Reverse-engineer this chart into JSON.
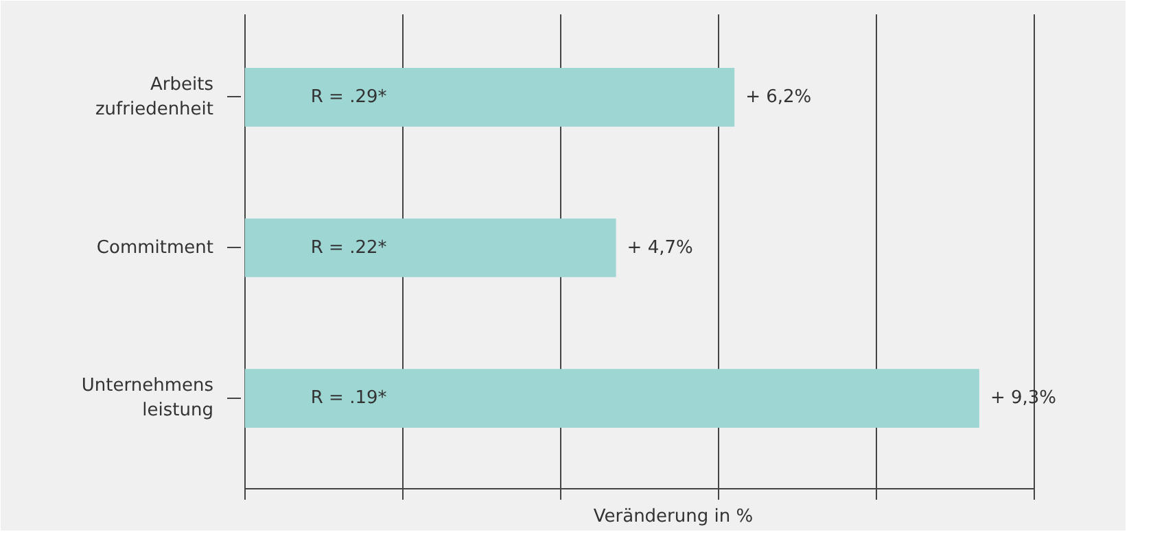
{
  "chart_data": {
    "type": "bar",
    "orientation": "horizontal",
    "xlabel": "Veränderung in %",
    "categories": [
      "Arbeits zufriedenheit",
      "Commitment",
      "Unternehmens leistung"
    ],
    "values": [
      6.2,
      4.7,
      9.3
    ],
    "color": "#9dd6d2",
    "value_labels": [
      "+ 6,2%",
      "+ 4,7%",
      "+ 9,3%"
    ],
    "xlim": [
      0,
      10
    ],
    "xticks": [
      {
        "value": 0,
        "label": null
      },
      {
        "value": 2,
        "label": null
      },
      {
        "value": 4,
        "label": null
      },
      {
        "value": 6,
        "label": null
      },
      {
        "value": 8,
        "label": null
      },
      {
        "value": 10,
        "label": null
      }
    ],
    "grid": "x",
    "annotations": [
      "R = .29*",
      "R = .22*",
      "R = .19*"
    ]
  }
}
